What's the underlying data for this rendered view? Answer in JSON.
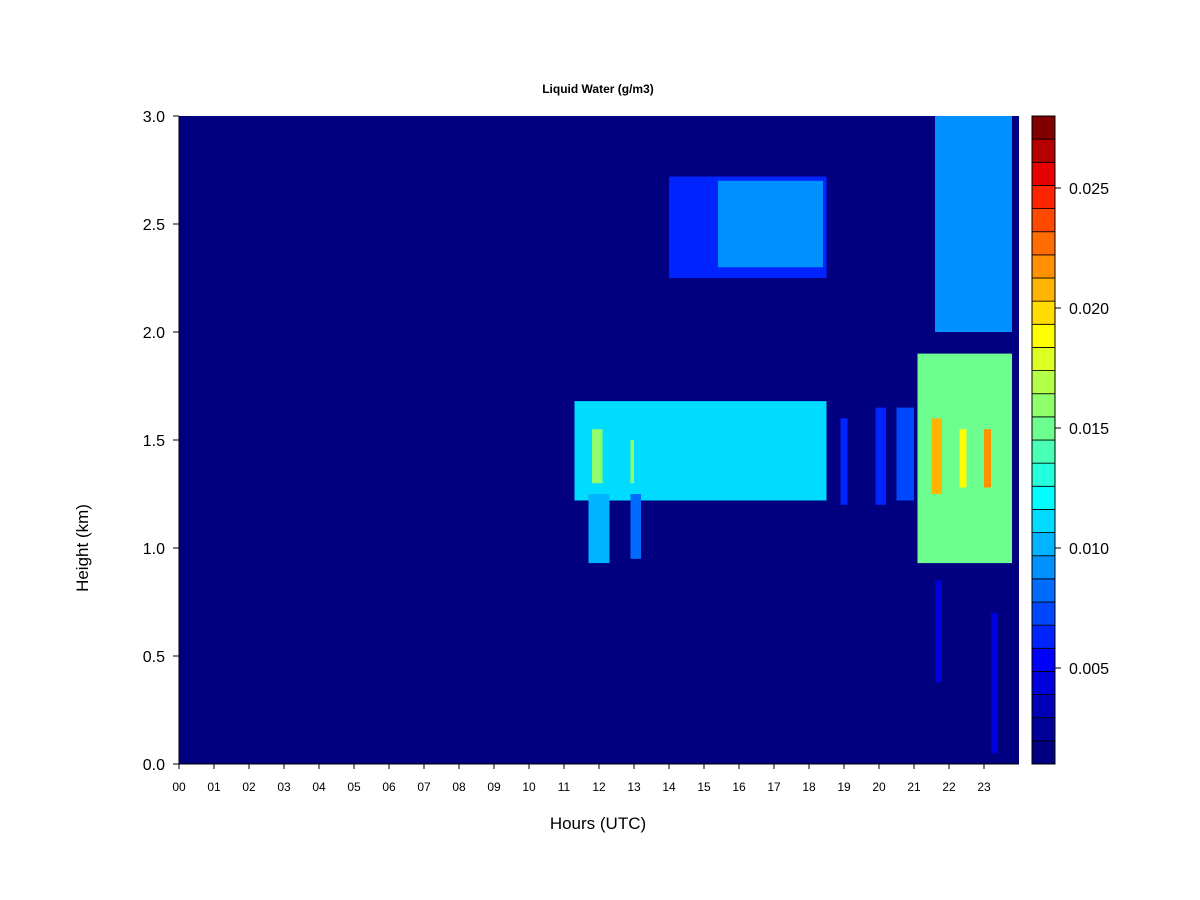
{
  "chart_data": {
    "type": "heatmap",
    "title": "Liquid Water (g/m3)",
    "xlabel": "Hours (UTC)",
    "ylabel": "Height (km)",
    "xlim": [
      0,
      24
    ],
    "ylim": [
      0,
      3
    ],
    "x_ticks": [
      "00",
      "01",
      "02",
      "03",
      "04",
      "05",
      "06",
      "07",
      "08",
      "09",
      "10",
      "11",
      "12",
      "13",
      "14",
      "15",
      "16",
      "17",
      "18",
      "19",
      "20",
      "21",
      "22",
      "23"
    ],
    "y_ticks": [
      "0.0",
      "0.5",
      "1.0",
      "1.5",
      "2.0",
      "2.5",
      "3.0"
    ],
    "colorbar": {
      "range": [
        0.001,
        0.028
      ],
      "ticks": [
        "0.005",
        "0.010",
        "0.015",
        "0.020",
        "0.025"
      ],
      "tick_values": [
        0.005,
        0.01,
        0.015,
        0.02,
        0.025
      ],
      "levels": [
        "#000080",
        "#00009a",
        "#0000b8",
        "#0000dc",
        "#0000ff",
        "#0024ff",
        "#0048ff",
        "#006cff",
        "#0090ff",
        "#00b4ff",
        "#00dcff",
        "#00ffff",
        "#24ffdc",
        "#48ffb4",
        "#6cff90",
        "#90ff6c",
        "#b4ff48",
        "#dcff24",
        "#ffff00",
        "#ffdc00",
        "#ffb400",
        "#ff9000",
        "#ff6c00",
        "#ff4800",
        "#ff2400",
        "#e60000",
        "#b40000",
        "#800000"
      ]
    },
    "background_value": 0.001,
    "cloud_regions": [
      {
        "x": [
          11.3,
          18.5
        ],
        "y": [
          1.22,
          1.68
        ],
        "value": 0.0115
      },
      {
        "x": [
          11.7,
          12.3
        ],
        "y": [
          0.93,
          1.25
        ],
        "value": 0.0105
      },
      {
        "x": [
          12.9,
          13.2
        ],
        "y": [
          0.95,
          1.25
        ],
        "value": 0.0085
      },
      {
        "x": [
          18.9,
          19.1
        ],
        "y": [
          1.2,
          1.6
        ],
        "value": 0.006
      },
      {
        "x": [
          19.9,
          20.2
        ],
        "y": [
          1.2,
          1.65
        ],
        "value": 0.0065
      },
      {
        "x": [
          20.5,
          21.0
        ],
        "y": [
          1.22,
          1.65
        ],
        "value": 0.007
      },
      {
        "x": [
          21.1,
          23.8
        ],
        "y": [
          0.93,
          1.9
        ],
        "value": 0.0145
      },
      {
        "x": [
          11.8,
          12.1
        ],
        "y": [
          1.3,
          1.55
        ],
        "value": 0.016
      },
      {
        "x": [
          12.9,
          13.0
        ],
        "y": [
          1.3,
          1.5
        ],
        "value": 0.016
      },
      {
        "x": [
          21.5,
          21.8
        ],
        "y": [
          1.25,
          1.6
        ],
        "value": 0.021
      },
      {
        "x": [
          22.3,
          22.5
        ],
        "y": [
          1.28,
          1.55
        ],
        "value": 0.019
      },
      {
        "x": [
          23.0,
          23.2
        ],
        "y": [
          1.28,
          1.55
        ],
        "value": 0.022
      },
      {
        "x": [
          14.0,
          18.5
        ],
        "y": [
          2.25,
          2.72
        ],
        "value": 0.006
      },
      {
        "x": [
          15.4,
          18.4
        ],
        "y": [
          2.3,
          2.7
        ],
        "value": 0.009
      },
      {
        "x": [
          21.6,
          23.8
        ],
        "y": [
          2.0,
          3.0
        ],
        "value": 0.0095
      },
      {
        "x": [
          21.6,
          21.8
        ],
        "y": [
          0.38,
          0.85
        ],
        "value": 0.004
      },
      {
        "x": [
          23.2,
          23.4
        ],
        "y": [
          0.05,
          0.7
        ],
        "value": 0.004
      }
    ]
  }
}
